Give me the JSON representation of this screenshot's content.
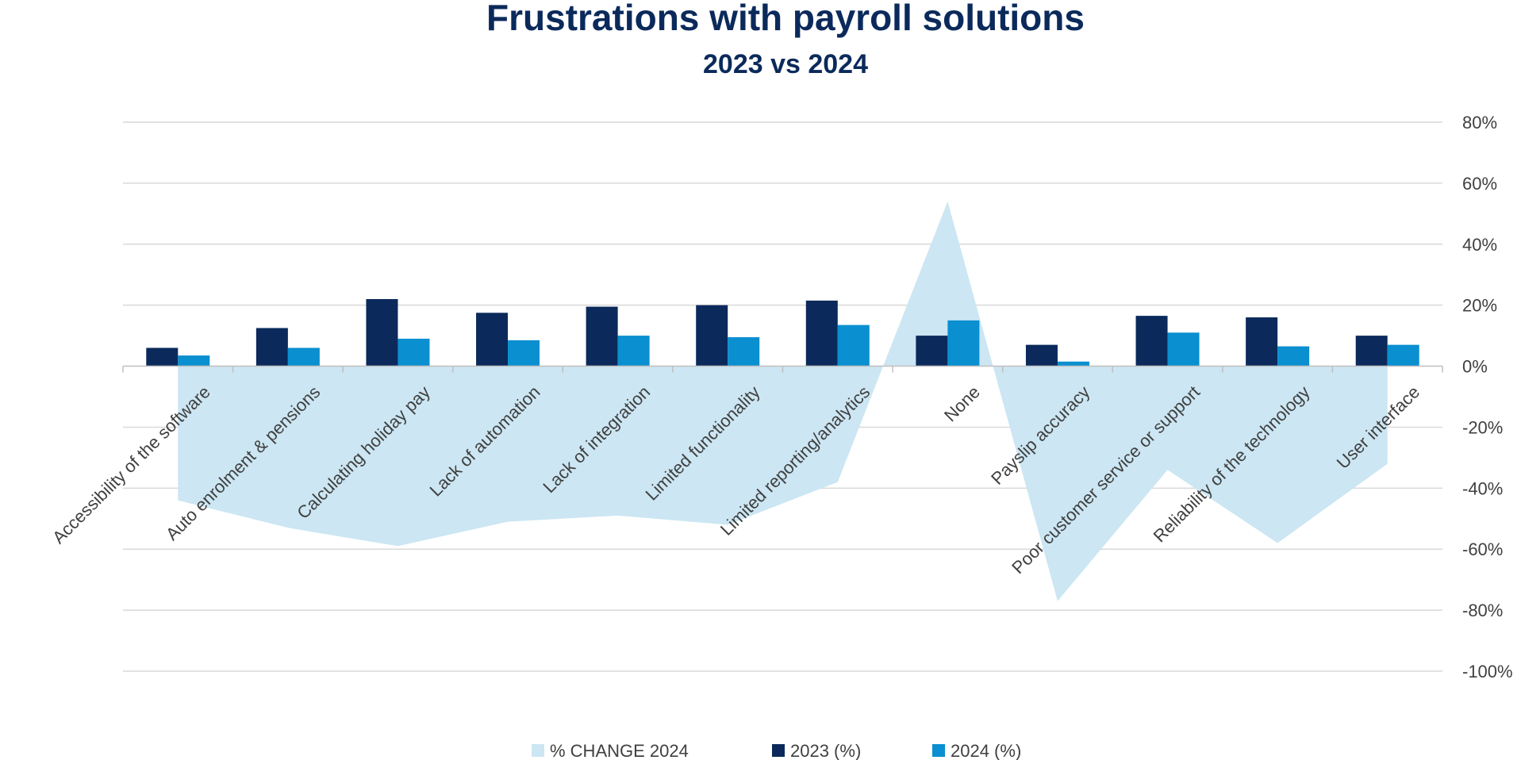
{
  "chart_data": {
    "type": "bar",
    "title": "Frustrations with payroll solutions",
    "subtitle": "2023 vs 2024",
    "categories": [
      "Accessibility of the software",
      "Auto enrolment & pensions",
      "Calculating holiday pay",
      "Lack of automation",
      "Lack of integration",
      "Limited functionality",
      "Limited reporting/analytics",
      "None",
      "Payslip accuracy",
      "Poor customer service or support",
      "Reliability of the technology",
      "User interface"
    ],
    "series": [
      {
        "name": "% CHANGE 2024",
        "type": "area",
        "color": "#cce6f3",
        "values": [
          -44,
          -53,
          -59,
          -51,
          -49,
          -52,
          -38,
          54,
          -77,
          -34,
          -58,
          -32
        ]
      },
      {
        "name": "2023 (%)",
        "type": "bar",
        "color": "#0b2a5b",
        "values": [
          6,
          12.5,
          22,
          17.5,
          19.5,
          20,
          21.5,
          10,
          7,
          16.5,
          16,
          10
        ]
      },
      {
        "name": "2024 (%)",
        "type": "bar",
        "color": "#0a8fd0",
        "values": [
          3.5,
          6,
          9,
          8.5,
          10,
          9.5,
          13.5,
          15,
          1.5,
          11,
          6.5,
          7
        ]
      }
    ],
    "y_ticks": [
      "80%",
      "60%",
      "40%",
      "20%",
      "0%",
      "-20%",
      "-40%",
      "-60%",
      "-80%",
      "-100%"
    ],
    "ylim": [
      -100,
      80
    ],
    "y_axis_side": "right",
    "grid": true,
    "legend_position": "bottom"
  }
}
